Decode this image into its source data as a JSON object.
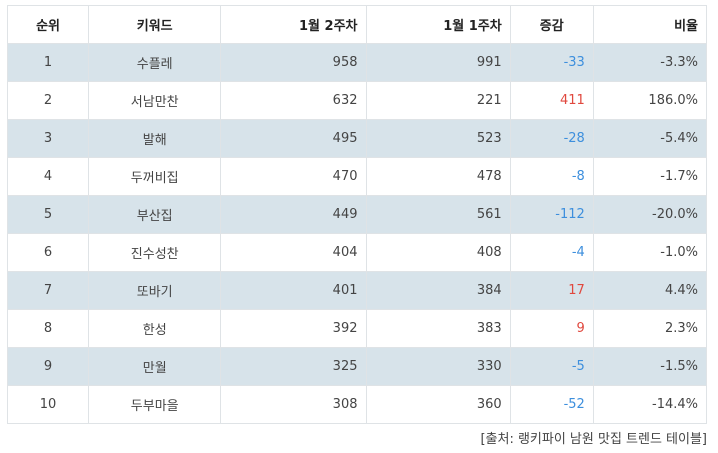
{
  "table": {
    "headers": [
      "순위",
      "키워드",
      "1월 2주차",
      "1월 1주차",
      "증감",
      "비율"
    ],
    "rows": [
      {
        "rank": "1",
        "keyword": "수플레",
        "week2": "958",
        "week1": "991",
        "diff": "-33",
        "ratio": "-3.3%"
      },
      {
        "rank": "2",
        "keyword": "서남만찬",
        "week2": "632",
        "week1": "221",
        "diff": "411",
        "ratio": "186.0%"
      },
      {
        "rank": "3",
        "keyword": "발해",
        "week2": "495",
        "week1": "523",
        "diff": "-28",
        "ratio": "-5.4%"
      },
      {
        "rank": "4",
        "keyword": "두꺼비집",
        "week2": "470",
        "week1": "478",
        "diff": "-8",
        "ratio": "-1.7%"
      },
      {
        "rank": "5",
        "keyword": "부산집",
        "week2": "449",
        "week1": "561",
        "diff": "-112",
        "ratio": "-20.0%"
      },
      {
        "rank": "6",
        "keyword": "진수성찬",
        "week2": "404",
        "week1": "408",
        "diff": "-4",
        "ratio": "-1.0%"
      },
      {
        "rank": "7",
        "keyword": "또바기",
        "week2": "401",
        "week1": "384",
        "diff": "17",
        "ratio": "4.4%"
      },
      {
        "rank": "8",
        "keyword": "한성",
        "week2": "392",
        "week1": "383",
        "diff": "9",
        "ratio": "2.3%"
      },
      {
        "rank": "9",
        "keyword": "만월",
        "week2": "325",
        "week1": "330",
        "diff": "-5",
        "ratio": "-1.5%"
      },
      {
        "rank": "10",
        "keyword": "두부마을",
        "week2": "308",
        "week1": "360",
        "diff": "-52",
        "ratio": "-14.4%"
      }
    ]
  },
  "colors": {
    "negative": "#3d8fdd",
    "positive": "#e0483e",
    "stripe": "#d7e3ea"
  },
  "source": "[출처: 랭키파이 남원 맛집 트렌드 테이블]"
}
